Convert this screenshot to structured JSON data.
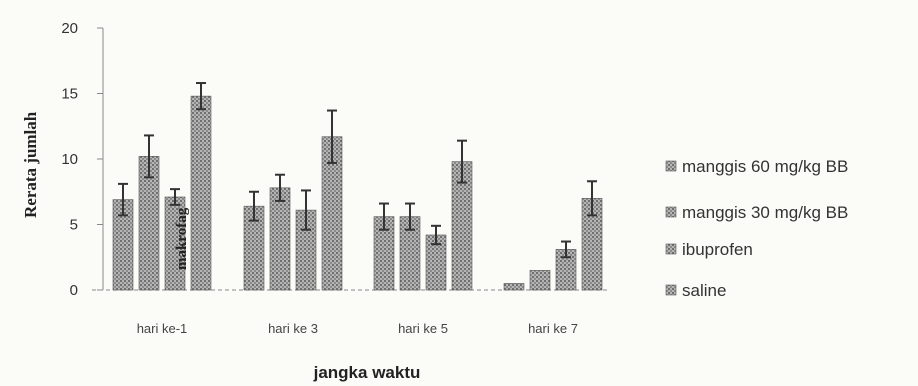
{
  "chart_data": {
    "type": "bar",
    "categories": [
      "hari ke-1",
      "hari ke 3",
      "hari ke 5",
      "hari ke 7"
    ],
    "series": [
      {
        "name": "manggis 60 mg/kg BB",
        "values": [
          6.9,
          6.4,
          5.6,
          0.5
        ],
        "errors": [
          1.2,
          1.1,
          1.0,
          0
        ]
      },
      {
        "name": "manggis 30 mg/kg BB",
        "values": [
          10.2,
          7.8,
          5.6,
          1.5
        ],
        "errors": [
          1.6,
          1.0,
          1.0,
          0
        ]
      },
      {
        "name": "ibuprofen",
        "values": [
          7.1,
          6.1,
          4.2,
          3.1
        ],
        "errors": [
          0.6,
          1.5,
          0.7,
          0.6
        ]
      },
      {
        "name": "saline",
        "values": [
          14.8,
          11.7,
          9.8,
          7.0
        ],
        "errors": [
          1.0,
          2.0,
          1.6,
          1.3
        ]
      }
    ],
    "xlabel": "jangka waktu",
    "ylabel": "Rerata jumlah",
    "annotation": "makrofag",
    "ylim": [
      0,
      20
    ],
    "yticks": [
      "20",
      "15",
      "10",
      "5",
      "0"
    ],
    "legend_position": "right",
    "colors": {
      "bar_fill": "#9a9a9a",
      "bar_stroke": "#555555",
      "error": "#333333",
      "axis": "#888888"
    }
  }
}
